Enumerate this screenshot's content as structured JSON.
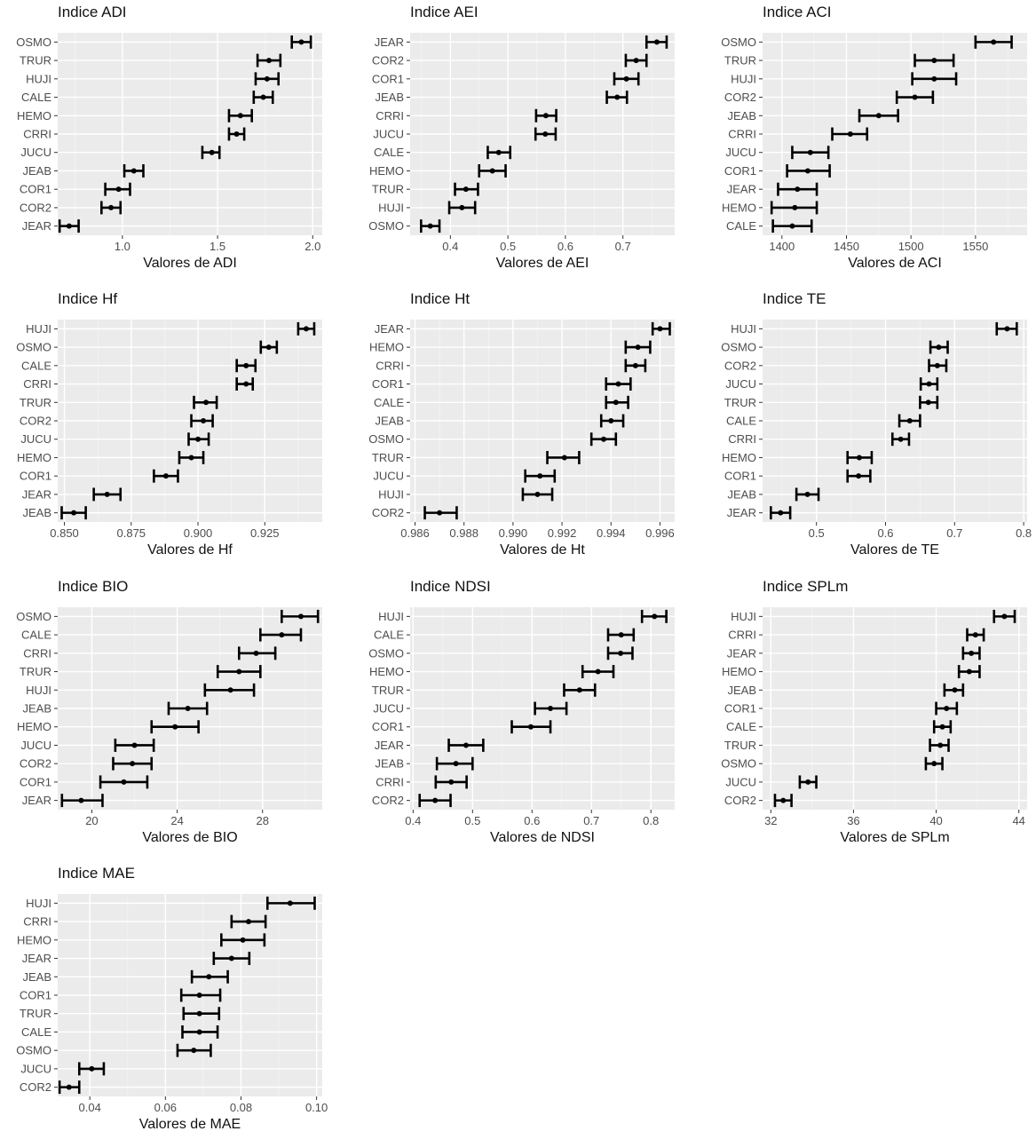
{
  "charts": [
    {
      "type": "errorbar",
      "title": "Indice ADI",
      "xlabel": "Valores de ADI",
      "xlim": [
        0.66,
        2.05
      ],
      "xticks": [
        1.0,
        1.5,
        2.0
      ],
      "tick_labels": [
        "1.0",
        "1.5",
        "2.0"
      ],
      "categories": [
        "OSMO",
        "TRUR",
        "HUJI",
        "CALE",
        "HEMO",
        "CRRI",
        "JUCU",
        "JEAB",
        "COR1",
        "COR2",
        "JEAR"
      ],
      "mean": [
        1.94,
        1.77,
        1.76,
        1.74,
        1.62,
        1.6,
        1.47,
        1.06,
        0.98,
        0.94,
        0.72
      ],
      "lower": [
        1.89,
        1.71,
        1.7,
        1.69,
        1.56,
        1.56,
        1.42,
        1.01,
        0.91,
        0.89,
        0.67
      ],
      "upper": [
        1.99,
        1.83,
        1.82,
        1.79,
        1.68,
        1.64,
        1.51,
        1.11,
        1.04,
        0.99,
        0.77
      ]
    },
    {
      "type": "errorbar",
      "title": "Indice AEI",
      "xlabel": "Valores de AEI",
      "xlim": [
        0.33,
        0.79
      ],
      "xticks": [
        0.4,
        0.5,
        0.6,
        0.7
      ],
      "tick_labels": [
        "0.4",
        "0.5",
        "0.6",
        "0.7"
      ],
      "categories": [
        "JEAR",
        "COR2",
        "COR1",
        "JEAB",
        "CRRI",
        "JUCU",
        "CALE",
        "HEMO",
        "TRUR",
        "HUJI",
        "OSMO"
      ],
      "mean": [
        0.759,
        0.723,
        0.706,
        0.69,
        0.566,
        0.565,
        0.484,
        0.473,
        0.427,
        0.42,
        0.365
      ],
      "lower": [
        0.741,
        0.705,
        0.685,
        0.672,
        0.549,
        0.548,
        0.465,
        0.45,
        0.408,
        0.398,
        0.349
      ],
      "upper": [
        0.776,
        0.741,
        0.727,
        0.707,
        0.584,
        0.583,
        0.504,
        0.496,
        0.448,
        0.443,
        0.381
      ]
    },
    {
      "type": "errorbar",
      "title": "Indice ACI",
      "xlabel": "Valores de ACI",
      "xlim": [
        1385,
        1590
      ],
      "xticks": [
        1400,
        1450,
        1500,
        1550
      ],
      "tick_labels": [
        "1400",
        "1450",
        "1500",
        "1550"
      ],
      "categories": [
        "OSMO",
        "TRUR",
        "HUJI",
        "COR2",
        "JEAB",
        "CRRI",
        "JUCU",
        "COR1",
        "JEAR",
        "HEMO",
        "CALE"
      ],
      "mean": [
        1564,
        1518,
        1518,
        1503,
        1475,
        1453,
        1422,
        1420,
        1412,
        1410,
        1408
      ],
      "lower": [
        1550,
        1503,
        1501,
        1489,
        1460,
        1439,
        1408,
        1404,
        1397,
        1392,
        1393
      ],
      "upper": [
        1578,
        1533,
        1535,
        1517,
        1490,
        1466,
        1436,
        1437,
        1427,
        1427,
        1423
      ]
    },
    {
      "type": "errorbar",
      "title": "Indice Hf",
      "xlabel": "Valores de Hf",
      "xlim": [
        0.8475,
        0.9465
      ],
      "xticks": [
        0.85,
        0.875,
        0.9,
        0.925
      ],
      "tick_labels": [
        "0.850",
        "0.875",
        "0.900",
        "0.925"
      ],
      "categories": [
        "HUJI",
        "OSMO",
        "CALE",
        "CRRI",
        "TRUR",
        "COR2",
        "JUCU",
        "HEMO",
        "COR1",
        "JEAR",
        "JEAB"
      ],
      "mean": [
        0.9405,
        0.9265,
        0.918,
        0.918,
        0.903,
        0.902,
        0.9,
        0.8975,
        0.888,
        0.866,
        0.8535
      ],
      "lower": [
        0.9375,
        0.9235,
        0.9145,
        0.9145,
        0.8985,
        0.8975,
        0.8965,
        0.893,
        0.8835,
        0.861,
        0.849
      ],
      "upper": [
        0.9435,
        0.9295,
        0.9215,
        0.9205,
        0.907,
        0.9055,
        0.904,
        0.902,
        0.8925,
        0.871,
        0.858
      ]
    },
    {
      "type": "errorbar",
      "title": "Indice Ht",
      "xlabel": "Valores de Ht",
      "xlim": [
        0.9858,
        0.9966
      ],
      "xticks": [
        0.986,
        0.988,
        0.99,
        0.992,
        0.994,
        0.996
      ],
      "tick_labels": [
        "0.986",
        "0.988",
        "0.990",
        "0.992",
        "0.994",
        "0.996"
      ],
      "categories": [
        "JEAR",
        "HEMO",
        "CRRI",
        "COR1",
        "CALE",
        "JEAB",
        "OSMO",
        "TRUR",
        "JUCU",
        "HUJI",
        "COR2"
      ],
      "mean": [
        0.996,
        0.9951,
        0.995,
        0.9943,
        0.9942,
        0.994,
        0.9937,
        0.9921,
        0.9911,
        0.991,
        0.987
      ],
      "lower": [
        0.9957,
        0.9946,
        0.9946,
        0.9938,
        0.9938,
        0.9936,
        0.9932,
        0.9914,
        0.9905,
        0.9904,
        0.9864
      ],
      "upper": [
        0.9964,
        0.9956,
        0.9954,
        0.9948,
        0.9947,
        0.9945,
        0.9942,
        0.9927,
        0.9917,
        0.9916,
        0.9877
      ]
    },
    {
      "type": "errorbar",
      "title": "Indice TE",
      "xlabel": "Valores de TE",
      "xlim": [
        0.422,
        0.805
      ],
      "xticks": [
        0.5,
        0.6,
        0.7,
        0.8
      ],
      "tick_labels": [
        "0.5",
        "0.6",
        "0.7",
        "0.8"
      ],
      "categories": [
        "HUJI",
        "OSMO",
        "COR2",
        "JUCU",
        "TRUR",
        "CALE",
        "CRRI",
        "HEMO",
        "COR1",
        "JEAB",
        "JEAR"
      ],
      "mean": [
        0.776,
        0.677,
        0.675,
        0.663,
        0.662,
        0.635,
        0.622,
        0.562,
        0.561,
        0.487,
        0.448
      ],
      "lower": [
        0.761,
        0.665,
        0.663,
        0.651,
        0.65,
        0.62,
        0.61,
        0.545,
        0.545,
        0.471,
        0.434
      ],
      "upper": [
        0.79,
        0.69,
        0.688,
        0.675,
        0.675,
        0.65,
        0.634,
        0.58,
        0.578,
        0.503,
        0.462
      ]
    },
    {
      "type": "errorbar",
      "title": "Indice BIO",
      "xlabel": "Valores de BIO",
      "xlim": [
        18.4,
        30.8
      ],
      "xticks": [
        20,
        24,
        28
      ],
      "tick_labels": [
        "20",
        "24",
        "28"
      ],
      "categories": [
        "OSMO",
        "CALE",
        "CRRI",
        "TRUR",
        "HUJI",
        "JEAB",
        "HEMO",
        "JUCU",
        "COR2",
        "COR1",
        "JEAR"
      ],
      "mean": [
        29.8,
        28.9,
        27.7,
        26.9,
        26.5,
        24.5,
        23.9,
        22.0,
        21.9,
        21.5,
        19.5
      ],
      "lower": [
        28.9,
        27.9,
        26.9,
        25.9,
        25.3,
        23.6,
        22.8,
        21.1,
        21.0,
        20.4,
        18.6
      ],
      "upper": [
        30.6,
        29.8,
        28.6,
        27.9,
        27.6,
        25.4,
        25.0,
        22.9,
        22.8,
        22.6,
        20.5
      ]
    },
    {
      "type": "errorbar",
      "title": "Indice NDSI",
      "xlabel": "Valores de NDSI",
      "xlim": [
        0.395,
        0.84
      ],
      "xticks": [
        0.4,
        0.5,
        0.6,
        0.7,
        0.8
      ],
      "tick_labels": [
        "0.4",
        "0.5",
        "0.6",
        "0.7",
        "0.8"
      ],
      "categories": [
        "HUJI",
        "CALE",
        "OSMO",
        "HEMO",
        "TRUR",
        "JUCU",
        "COR1",
        "JEAR",
        "JEAB",
        "CRRI",
        "COR2"
      ],
      "mean": [
        0.806,
        0.75,
        0.749,
        0.711,
        0.68,
        0.631,
        0.598,
        0.489,
        0.472,
        0.464,
        0.437
      ],
      "lower": [
        0.785,
        0.728,
        0.728,
        0.685,
        0.654,
        0.605,
        0.566,
        0.46,
        0.44,
        0.438,
        0.411
      ],
      "upper": [
        0.826,
        0.771,
        0.769,
        0.737,
        0.706,
        0.658,
        0.631,
        0.518,
        0.5,
        0.49,
        0.463
      ]
    },
    {
      "type": "errorbar",
      "title": "Indice SPLm",
      "xlabel": "Valores de SPLm",
      "xlim": [
        31.6,
        44.4
      ],
      "xticks": [
        32,
        36,
        40,
        44
      ],
      "tick_labels": [
        "32",
        "36",
        "40",
        "44"
      ],
      "categories": [
        "HUJI",
        "CRRI",
        "JEAR",
        "HEMO",
        "JEAB",
        "COR1",
        "CALE",
        "TRUR",
        "OSMO",
        "JUCU",
        "COR2"
      ],
      "mean": [
        43.3,
        41.9,
        41.7,
        41.6,
        40.9,
        40.5,
        40.3,
        40.2,
        39.9,
        33.8,
        32.6
      ],
      "lower": [
        42.8,
        41.5,
        41.3,
        41.1,
        40.4,
        40.0,
        39.9,
        39.7,
        39.5,
        33.4,
        32.2
      ],
      "upper": [
        43.8,
        42.3,
        42.1,
        42.1,
        41.3,
        41.0,
        40.7,
        40.6,
        40.3,
        34.2,
        33.0
      ]
    },
    {
      "type": "errorbar",
      "title": "Indice MAE",
      "xlabel": "Valores de MAE",
      "xlim": [
        0.0315,
        0.1015
      ],
      "xticks": [
        0.04,
        0.06,
        0.08,
        0.1
      ],
      "tick_labels": [
        "0.04",
        "0.06",
        "0.08",
        "0.10"
      ],
      "categories": [
        "HUJI",
        "CRRI",
        "HEMO",
        "JEAR",
        "JEAB",
        "COR1",
        "TRUR",
        "CALE",
        "OSMO",
        "JUCU",
        "COR2"
      ],
      "mean": [
        0.093,
        0.082,
        0.0805,
        0.0775,
        0.0715,
        0.069,
        0.069,
        0.069,
        0.0675,
        0.0405,
        0.0345
      ],
      "lower": [
        0.087,
        0.0775,
        0.0748,
        0.0728,
        0.067,
        0.0642,
        0.0648,
        0.0645,
        0.0632,
        0.0372,
        0.032
      ],
      "upper": [
        0.0995,
        0.0865,
        0.0862,
        0.0822,
        0.0765,
        0.0745,
        0.0742,
        0.0738,
        0.072,
        0.0437,
        0.0372
      ]
    }
  ]
}
